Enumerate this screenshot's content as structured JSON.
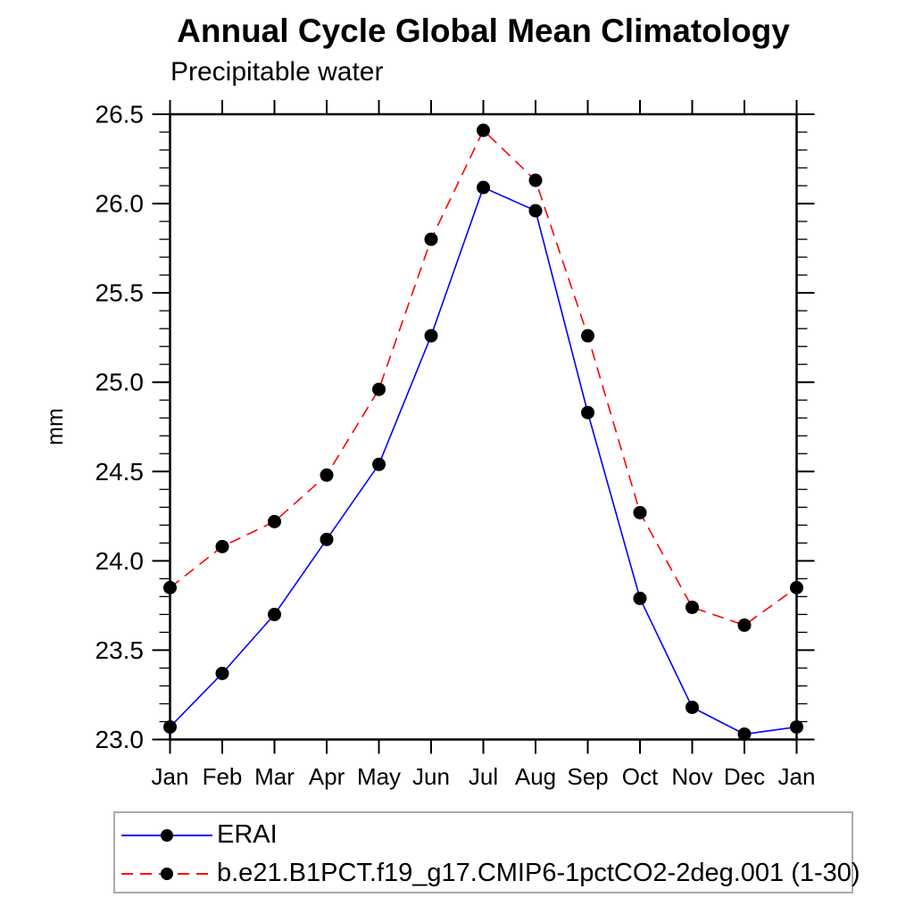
{
  "chart_data": {
    "type": "line",
    "title": "Annual Cycle Global Mean Climatology",
    "subtitle": "Precipitable water",
    "ylabel": "mm",
    "xlabel": "",
    "x_tick_labels": [
      "Jan",
      "Feb",
      "Mar",
      "Apr",
      "May",
      "Jun",
      "Jul",
      "Aug",
      "Sep",
      "Oct",
      "Nov",
      "Dec",
      "Jan"
    ],
    "ylim": [
      23.0,
      26.5
    ],
    "y_major_step": 0.5,
    "y_minor_step": 0.1,
    "grid": "off",
    "legend_position": "bottom-left boxed",
    "axis_color": "#000000",
    "marker_color": "#000000",
    "series": [
      {
        "name": "ERAI",
        "color": "#0000ff",
        "line_style": "solid",
        "marker": "filled-circle",
        "values": [
          23.07,
          23.37,
          23.7,
          24.12,
          24.54,
          25.26,
          26.09,
          25.96,
          24.83,
          23.79,
          23.18,
          23.03,
          23.07
        ]
      },
      {
        "name": "b.e21.B1PCT.f19_g17.CMIP6-1pctCO2-2deg.001 (1-30)",
        "color": "#ff0000",
        "line_style": "dashed",
        "marker": "filled-circle",
        "values": [
          23.85,
          24.08,
          24.22,
          24.48,
          24.96,
          25.8,
          26.41,
          26.13,
          25.26,
          24.27,
          23.74,
          23.64,
          23.85
        ]
      }
    ]
  }
}
